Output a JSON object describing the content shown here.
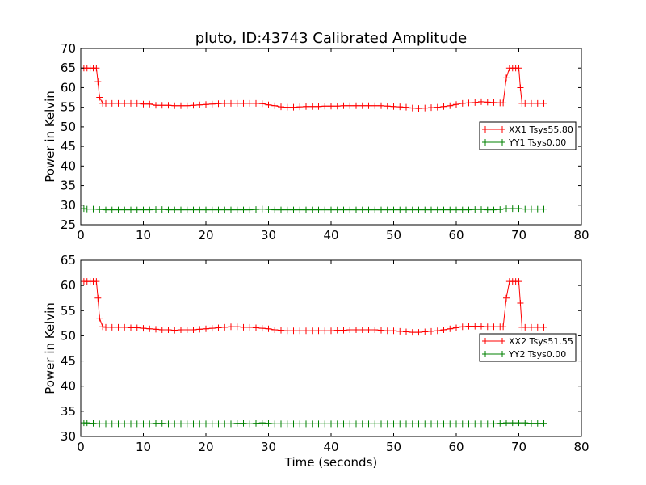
{
  "figure": {
    "title": "pluto, ID:43743 Calibrated Amplitude"
  },
  "chart_data": [
    {
      "type": "line",
      "xlabel": "",
      "ylabel": "Power in Kelvin",
      "xlim": [
        0,
        80
      ],
      "ylim": [
        25,
        70
      ],
      "xticks": [
        "0",
        "10",
        "20",
        "30",
        "40",
        "50",
        "60",
        "70",
        "80"
      ],
      "yticks": [
        "25",
        "30",
        "35",
        "40",
        "45",
        "50",
        "55",
        "60",
        "65",
        "70"
      ],
      "grid": false,
      "legend_position": "right",
      "marker": "+",
      "series": [
        {
          "name": "XX1 Tsys55.80",
          "color": "#ff0000",
          "x": [
            0.5,
            1,
            1.5,
            2,
            2.5,
            2.75,
            3,
            3.5,
            4,
            5,
            6,
            7,
            8,
            9,
            10,
            11,
            12,
            13,
            14,
            15,
            16,
            17,
            18,
            19,
            20,
            21,
            22,
            23,
            24,
            25,
            26,
            27,
            28,
            29,
            30,
            31,
            32,
            33,
            34,
            35,
            36,
            37,
            38,
            39,
            40,
            41,
            42,
            43,
            44,
            45,
            46,
            47,
            48,
            49,
            50,
            51,
            52,
            53,
            54,
            55,
            56,
            57,
            58,
            59,
            60,
            61,
            62,
            63,
            64,
            65,
            66,
            67,
            67.5,
            68,
            68.5,
            69,
            69.5,
            70,
            70.25,
            70.5,
            71,
            72,
            73,
            74
          ],
          "y": [
            65,
            65,
            65,
            65,
            65,
            61.5,
            57.5,
            56,
            56,
            56,
            56,
            56,
            56,
            56,
            55.8,
            55.8,
            55.5,
            55.5,
            55.5,
            55.4,
            55.4,
            55.4,
            55.5,
            55.6,
            55.7,
            55.8,
            55.9,
            56,
            56,
            56,
            56,
            56,
            56,
            55.9,
            55.6,
            55.4,
            55.1,
            55,
            55,
            55.1,
            55.2,
            55.2,
            55.2,
            55.3,
            55.3,
            55.3,
            55.4,
            55.4,
            55.4,
            55.4,
            55.4,
            55.4,
            55.4,
            55.3,
            55.2,
            55.1,
            55,
            54.8,
            54.7,
            54.8,
            54.9,
            55,
            55.2,
            55.4,
            55.7,
            56,
            56.1,
            56.2,
            56.4,
            56.3,
            56.2,
            56.1,
            56.1,
            62.5,
            65,
            65,
            65,
            65,
            60,
            56,
            56,
            56,
            56,
            56
          ]
        },
        {
          "name": "YY1 Tsys0.00",
          "color": "#008000",
          "x": [
            0.5,
            1,
            2,
            3,
            4,
            5,
            6,
            7,
            8,
            9,
            10,
            11,
            12,
            13,
            14,
            15,
            16,
            17,
            18,
            19,
            20,
            21,
            22,
            23,
            24,
            25,
            26,
            27,
            28,
            29,
            30,
            31,
            32,
            33,
            34,
            35,
            36,
            37,
            38,
            39,
            40,
            41,
            42,
            43,
            44,
            45,
            46,
            47,
            48,
            49,
            50,
            51,
            52,
            53,
            54,
            55,
            56,
            57,
            58,
            59,
            60,
            61,
            62,
            63,
            64,
            65,
            66,
            67,
            68,
            69,
            70,
            71,
            72,
            73,
            74
          ],
          "y": [
            29.1,
            29,
            29,
            28.9,
            28.8,
            28.8,
            28.8,
            28.8,
            28.8,
            28.8,
            28.8,
            28.8,
            28.9,
            28.9,
            28.8,
            28.8,
            28.8,
            28.8,
            28.8,
            28.8,
            28.8,
            28.8,
            28.8,
            28.8,
            28.8,
            28.8,
            28.8,
            28.8,
            28.9,
            29,
            28.9,
            28.8,
            28.8,
            28.8,
            28.8,
            28.8,
            28.8,
            28.8,
            28.8,
            28.8,
            28.8,
            28.8,
            28.8,
            28.8,
            28.8,
            28.8,
            28.8,
            28.8,
            28.8,
            28.8,
            28.8,
            28.8,
            28.8,
            28.8,
            28.8,
            28.8,
            28.8,
            28.8,
            28.8,
            28.8,
            28.8,
            28.8,
            28.8,
            28.9,
            28.9,
            28.8,
            28.8,
            28.9,
            29.1,
            29.1,
            29.1,
            29,
            29,
            29,
            29
          ]
        }
      ]
    },
    {
      "type": "line",
      "xlabel": "Time (seconds)",
      "ylabel": "Power in Kelvin",
      "xlim": [
        0,
        80
      ],
      "ylim": [
        30,
        65
      ],
      "xticks": [
        "0",
        "10",
        "20",
        "30",
        "40",
        "50",
        "60",
        "70",
        "80"
      ],
      "yticks": [
        "30",
        "35",
        "40",
        "45",
        "50",
        "55",
        "60",
        "65"
      ],
      "grid": false,
      "legend_position": "right",
      "marker": "+",
      "series": [
        {
          "name": "XX2 Tsys51.55",
          "color": "#ff0000",
          "x": [
            0.5,
            1,
            1.5,
            2,
            2.5,
            2.75,
            3,
            3.5,
            4,
            5,
            6,
            7,
            8,
            9,
            10,
            11,
            12,
            13,
            14,
            15,
            16,
            17,
            18,
            19,
            20,
            21,
            22,
            23,
            24,
            25,
            26,
            27,
            28,
            29,
            30,
            31,
            32,
            33,
            34,
            35,
            36,
            37,
            38,
            39,
            40,
            41,
            42,
            43,
            44,
            45,
            46,
            47,
            48,
            49,
            50,
            51,
            52,
            53,
            54,
            55,
            56,
            57,
            58,
            59,
            60,
            61,
            62,
            63,
            64,
            65,
            66,
            67,
            67.5,
            68,
            68.5,
            69,
            69.5,
            70,
            70.25,
            70.5,
            71,
            72,
            73,
            74
          ],
          "y": [
            60.8,
            60.8,
            60.8,
            60.8,
            60.8,
            57.5,
            53.5,
            51.8,
            51.7,
            51.7,
            51.7,
            51.7,
            51.6,
            51.6,
            51.5,
            51.4,
            51.3,
            51.2,
            51.2,
            51.1,
            51.2,
            51.2,
            51.2,
            51.3,
            51.4,
            51.5,
            51.6,
            51.7,
            51.8,
            51.8,
            51.7,
            51.7,
            51.6,
            51.5,
            51.4,
            51.2,
            51.1,
            51,
            51,
            51,
            51,
            51,
            51,
            51,
            51,
            51.1,
            51.1,
            51.2,
            51.2,
            51.2,
            51.2,
            51.2,
            51.1,
            51,
            51,
            50.9,
            50.8,
            50.7,
            50.7,
            50.8,
            50.9,
            51,
            51.2,
            51.4,
            51.6,
            51.8,
            51.9,
            51.9,
            51.9,
            51.8,
            51.8,
            51.8,
            51.8,
            57.5,
            60.8,
            60.8,
            60.8,
            60.8,
            56.5,
            51.7,
            51.7,
            51.7,
            51.7,
            51.7
          ]
        },
        {
          "name": "YY2 Tsys0.00",
          "color": "#008000",
          "x": [
            0.5,
            1,
            2,
            3,
            4,
            5,
            6,
            7,
            8,
            9,
            10,
            11,
            12,
            13,
            14,
            15,
            16,
            17,
            18,
            19,
            20,
            21,
            22,
            23,
            24,
            25,
            26,
            27,
            28,
            29,
            30,
            31,
            32,
            33,
            34,
            35,
            36,
            37,
            38,
            39,
            40,
            41,
            42,
            43,
            44,
            45,
            46,
            47,
            48,
            49,
            50,
            51,
            52,
            53,
            54,
            55,
            56,
            57,
            58,
            59,
            60,
            61,
            62,
            63,
            64,
            65,
            66,
            67,
            68,
            69,
            70,
            71,
            72,
            73,
            74
          ],
          "y": [
            32.7,
            32.7,
            32.6,
            32.5,
            32.5,
            32.5,
            32.5,
            32.5,
            32.5,
            32.5,
            32.5,
            32.5,
            32.6,
            32.6,
            32.5,
            32.5,
            32.5,
            32.5,
            32.5,
            32.5,
            32.5,
            32.5,
            32.5,
            32.5,
            32.5,
            32.6,
            32.6,
            32.5,
            32.6,
            32.7,
            32.6,
            32.5,
            32.5,
            32.5,
            32.5,
            32.5,
            32.5,
            32.5,
            32.5,
            32.5,
            32.5,
            32.5,
            32.5,
            32.5,
            32.5,
            32.5,
            32.5,
            32.5,
            32.5,
            32.5,
            32.5,
            32.5,
            32.5,
            32.5,
            32.5,
            32.5,
            32.5,
            32.5,
            32.5,
            32.5,
            32.5,
            32.5,
            32.5,
            32.5,
            32.5,
            32.5,
            32.5,
            32.6,
            32.7,
            32.7,
            32.7,
            32.7,
            32.6,
            32.6,
            32.6
          ]
        }
      ]
    }
  ]
}
